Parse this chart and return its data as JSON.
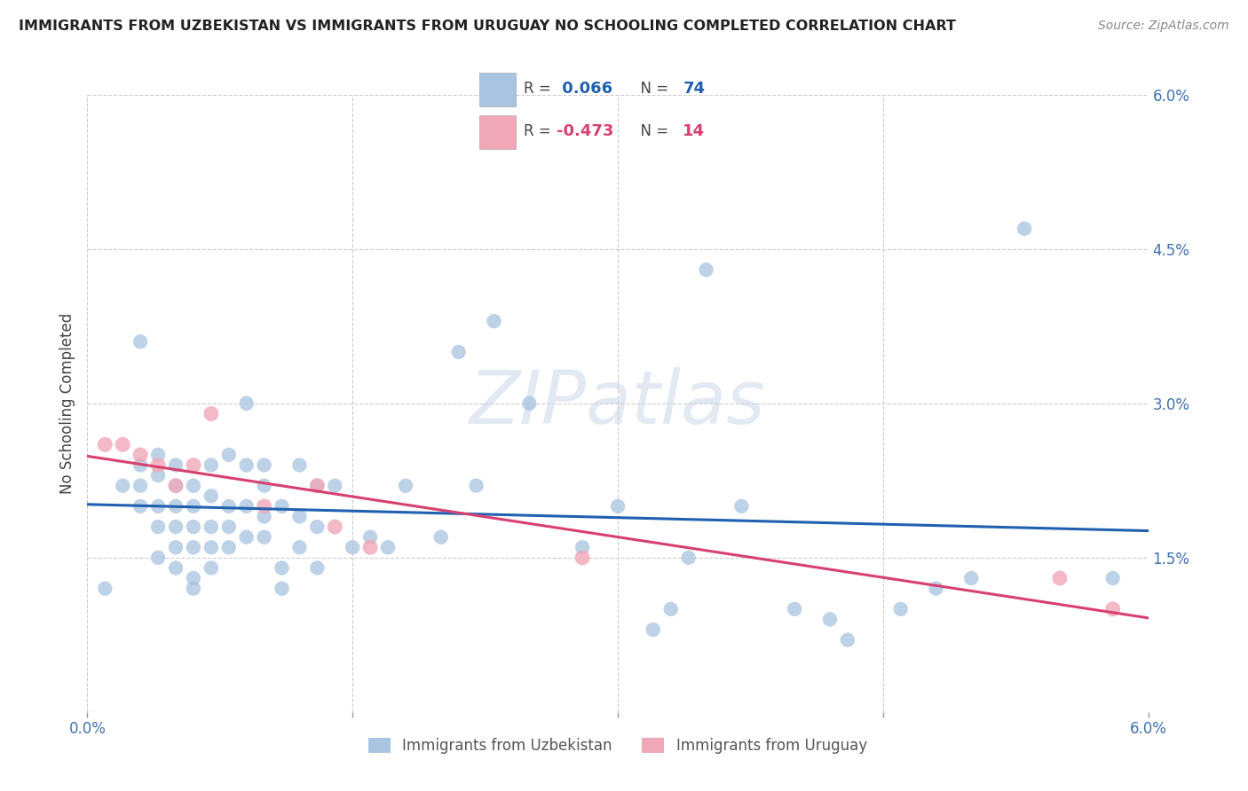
{
  "title": "IMMIGRANTS FROM UZBEKISTAN VS IMMIGRANTS FROM URUGUAY NO SCHOOLING COMPLETED CORRELATION CHART",
  "source": "Source: ZipAtlas.com",
  "ylabel": "No Schooling Completed",
  "xlim": [
    0.0,
    0.06
  ],
  "ylim": [
    0.0,
    0.06
  ],
  "uzbekistan_color": "#a8c4e0",
  "uruguay_color": "#f0a8b8",
  "uzbekistan_line_color": "#2060b0",
  "uruguay_line_color": "#d84070",
  "uzbekistan_R": 0.066,
  "uzbekistan_N": 74,
  "uruguay_R": -0.473,
  "uruguay_N": 14,
  "background_color": "#ffffff",
  "grid_color": "#cccccc",
  "watermark": "ZIPatlas",
  "uzbekistan_x": [
    0.001,
    0.002,
    0.003,
    0.003,
    0.003,
    0.003,
    0.004,
    0.004,
    0.004,
    0.004,
    0.004,
    0.005,
    0.005,
    0.005,
    0.005,
    0.005,
    0.005,
    0.006,
    0.006,
    0.006,
    0.006,
    0.006,
    0.006,
    0.007,
    0.007,
    0.007,
    0.007,
    0.007,
    0.008,
    0.008,
    0.008,
    0.008,
    0.009,
    0.009,
    0.009,
    0.009,
    0.01,
    0.01,
    0.01,
    0.01,
    0.011,
    0.011,
    0.011,
    0.012,
    0.012,
    0.012,
    0.013,
    0.013,
    0.013,
    0.014,
    0.015,
    0.016,
    0.017,
    0.018,
    0.02,
    0.021,
    0.022,
    0.023,
    0.025,
    0.028,
    0.03,
    0.032,
    0.033,
    0.034,
    0.035,
    0.037,
    0.04,
    0.042,
    0.043,
    0.046,
    0.048,
    0.05,
    0.053,
    0.058
  ],
  "uzbekistan_y": [
    0.012,
    0.022,
    0.02,
    0.022,
    0.024,
    0.036,
    0.015,
    0.018,
    0.02,
    0.023,
    0.025,
    0.014,
    0.016,
    0.018,
    0.02,
    0.022,
    0.024,
    0.012,
    0.013,
    0.016,
    0.018,
    0.02,
    0.022,
    0.014,
    0.016,
    0.018,
    0.021,
    0.024,
    0.016,
    0.018,
    0.02,
    0.025,
    0.017,
    0.02,
    0.024,
    0.03,
    0.017,
    0.019,
    0.022,
    0.024,
    0.012,
    0.014,
    0.02,
    0.016,
    0.019,
    0.024,
    0.014,
    0.018,
    0.022,
    0.022,
    0.016,
    0.017,
    0.016,
    0.022,
    0.017,
    0.035,
    0.022,
    0.038,
    0.03,
    0.016,
    0.02,
    0.008,
    0.01,
    0.015,
    0.043,
    0.02,
    0.01,
    0.009,
    0.007,
    0.01,
    0.012,
    0.013,
    0.047,
    0.013
  ],
  "uruguay_x": [
    0.001,
    0.002,
    0.003,
    0.004,
    0.005,
    0.006,
    0.007,
    0.01,
    0.013,
    0.014,
    0.016,
    0.028,
    0.055,
    0.058
  ],
  "uruguay_y": [
    0.026,
    0.026,
    0.025,
    0.024,
    0.022,
    0.024,
    0.029,
    0.02,
    0.022,
    0.018,
    0.016,
    0.015,
    0.013,
    0.01
  ]
}
